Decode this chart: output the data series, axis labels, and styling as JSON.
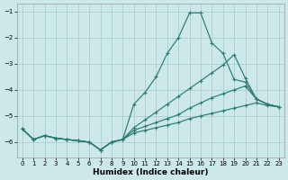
{
  "xlabel": "Humidex (Indice chaleur)",
  "bg_color": "#cce8e8",
  "line_color": "#2d7a75",
  "grid_color": "#aacfcf",
  "xlim": [
    -0.5,
    23.5
  ],
  "ylim": [
    -6.6,
    -0.7
  ],
  "yticks": [
    -6,
    -5,
    -4,
    -3,
    -2,
    -1
  ],
  "xticks": [
    0,
    1,
    2,
    3,
    4,
    5,
    6,
    7,
    8,
    9,
    10,
    11,
    12,
    13,
    14,
    15,
    16,
    17,
    18,
    19,
    20,
    21,
    22,
    23
  ],
  "lines": [
    {
      "x": [
        0,
        1,
        2,
        3,
        4,
        5,
        6,
        7,
        8,
        9,
        10,
        11,
        12,
        13,
        14,
        15,
        16,
        17,
        18,
        19,
        20,
        21,
        22,
        23
      ],
      "y": [
        -5.5,
        -5.9,
        -5.75,
        -5.85,
        -5.9,
        -5.95,
        -6.0,
        -6.3,
        -6.0,
        -5.9,
        -4.55,
        -4.1,
        -3.5,
        -2.6,
        -2.0,
        -1.05,
        -1.05,
        -2.2,
        -2.6,
        -3.6,
        -3.7,
        -4.35,
        -4.55,
        -4.65
      ]
    },
    {
      "x": [
        0,
        1,
        2,
        3,
        4,
        5,
        6,
        7,
        8,
        9,
        10,
        11,
        12,
        13,
        14,
        15,
        16,
        17,
        18,
        19,
        20,
        21,
        22,
        23
      ],
      "y": [
        -5.5,
        -5.9,
        -5.75,
        -5.85,
        -5.9,
        -5.95,
        -6.0,
        -6.3,
        -6.0,
        -5.9,
        -5.45,
        -5.15,
        -4.85,
        -4.55,
        -4.25,
        -3.95,
        -3.65,
        -3.35,
        -3.05,
        -2.65,
        -3.55,
        -4.35,
        -4.55,
        -4.65
      ]
    },
    {
      "x": [
        0,
        1,
        2,
        3,
        4,
        5,
        6,
        7,
        8,
        9,
        10,
        11,
        12,
        13,
        14,
        15,
        16,
        17,
        18,
        19,
        20,
        21,
        22,
        23
      ],
      "y": [
        -5.5,
        -5.9,
        -5.75,
        -5.85,
        -5.9,
        -5.95,
        -6.0,
        -6.3,
        -6.0,
        -5.9,
        -5.65,
        -5.55,
        -5.45,
        -5.35,
        -5.25,
        -5.1,
        -5.0,
        -4.9,
        -4.8,
        -4.7,
        -4.6,
        -4.5,
        -4.6,
        -4.65
      ]
    },
    {
      "x": [
        0,
        1,
        2,
        3,
        4,
        5,
        6,
        7,
        8,
        9,
        10,
        11,
        12,
        13,
        14,
        15,
        16,
        17,
        18,
        19,
        20,
        21,
        22,
        23
      ],
      "y": [
        -5.5,
        -5.9,
        -5.75,
        -5.85,
        -5.9,
        -5.95,
        -6.0,
        -6.3,
        -6.0,
        -5.9,
        -5.55,
        -5.4,
        -5.25,
        -5.1,
        -4.95,
        -4.7,
        -4.5,
        -4.3,
        -4.15,
        -4.0,
        -3.85,
        -4.35,
        -4.55,
        -4.65
      ]
    }
  ]
}
